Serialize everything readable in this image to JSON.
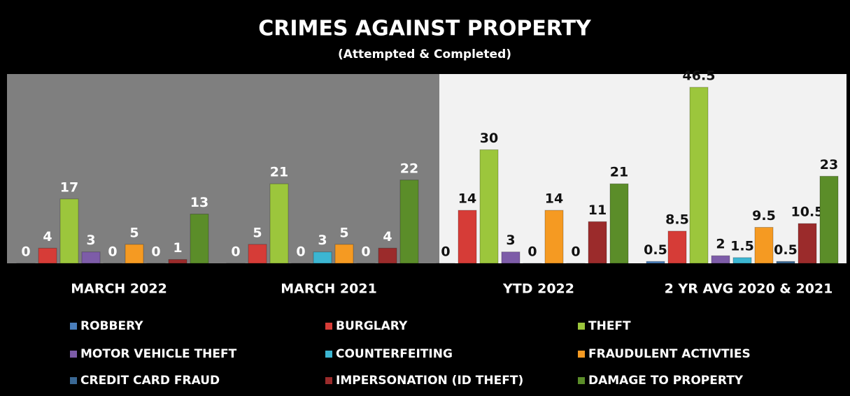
{
  "chart_data": {
    "type": "bar",
    "title": "CRIMES AGAINST PROPERTY",
    "subtitle": "(Attempted & Completed)",
    "categories": [
      "MARCH 2022",
      "MARCH 2021",
      "YTD 2022",
      "2 YR AVG 2020 & 2021"
    ],
    "ylim": [
      0,
      50
    ],
    "series": [
      {
        "name": "ROBBERY",
        "color": "#4a7ebb",
        "values": [
          0,
          0,
          0,
          0.5
        ]
      },
      {
        "name": "BURGLARY",
        "color": "#d63c37",
        "values": [
          4,
          5,
          14,
          8.5
        ]
      },
      {
        "name": "THEFT",
        "color": "#9cc63c",
        "values": [
          17,
          21,
          30,
          46.5
        ]
      },
      {
        "name": "MOTOR VEHICLE THEFT",
        "color": "#7d5ca8",
        "values": [
          3,
          0,
          3,
          2
        ]
      },
      {
        "name": "COUNTERFEITING",
        "color": "#3cb6d2",
        "values": [
          0,
          3,
          0,
          1.5
        ]
      },
      {
        "name": "FRAUDULENT ACTIVTIES",
        "color": "#f59a22",
        "values": [
          5,
          5,
          14,
          9.5
        ]
      },
      {
        "name": "CREDIT CARD FRAUD",
        "color": "#3a6894",
        "values": [
          0,
          0,
          0,
          0.5
        ]
      },
      {
        "name": "IMPERSONATION (ID THEFT)",
        "color": "#9b2b2b",
        "values": [
          1,
          4,
          11,
          10.5
        ]
      },
      {
        "name": "DAMAGE TO PROPERTY",
        "color": "#5b8d29",
        "values": [
          13,
          22,
          21,
          23
        ]
      }
    ]
  }
}
